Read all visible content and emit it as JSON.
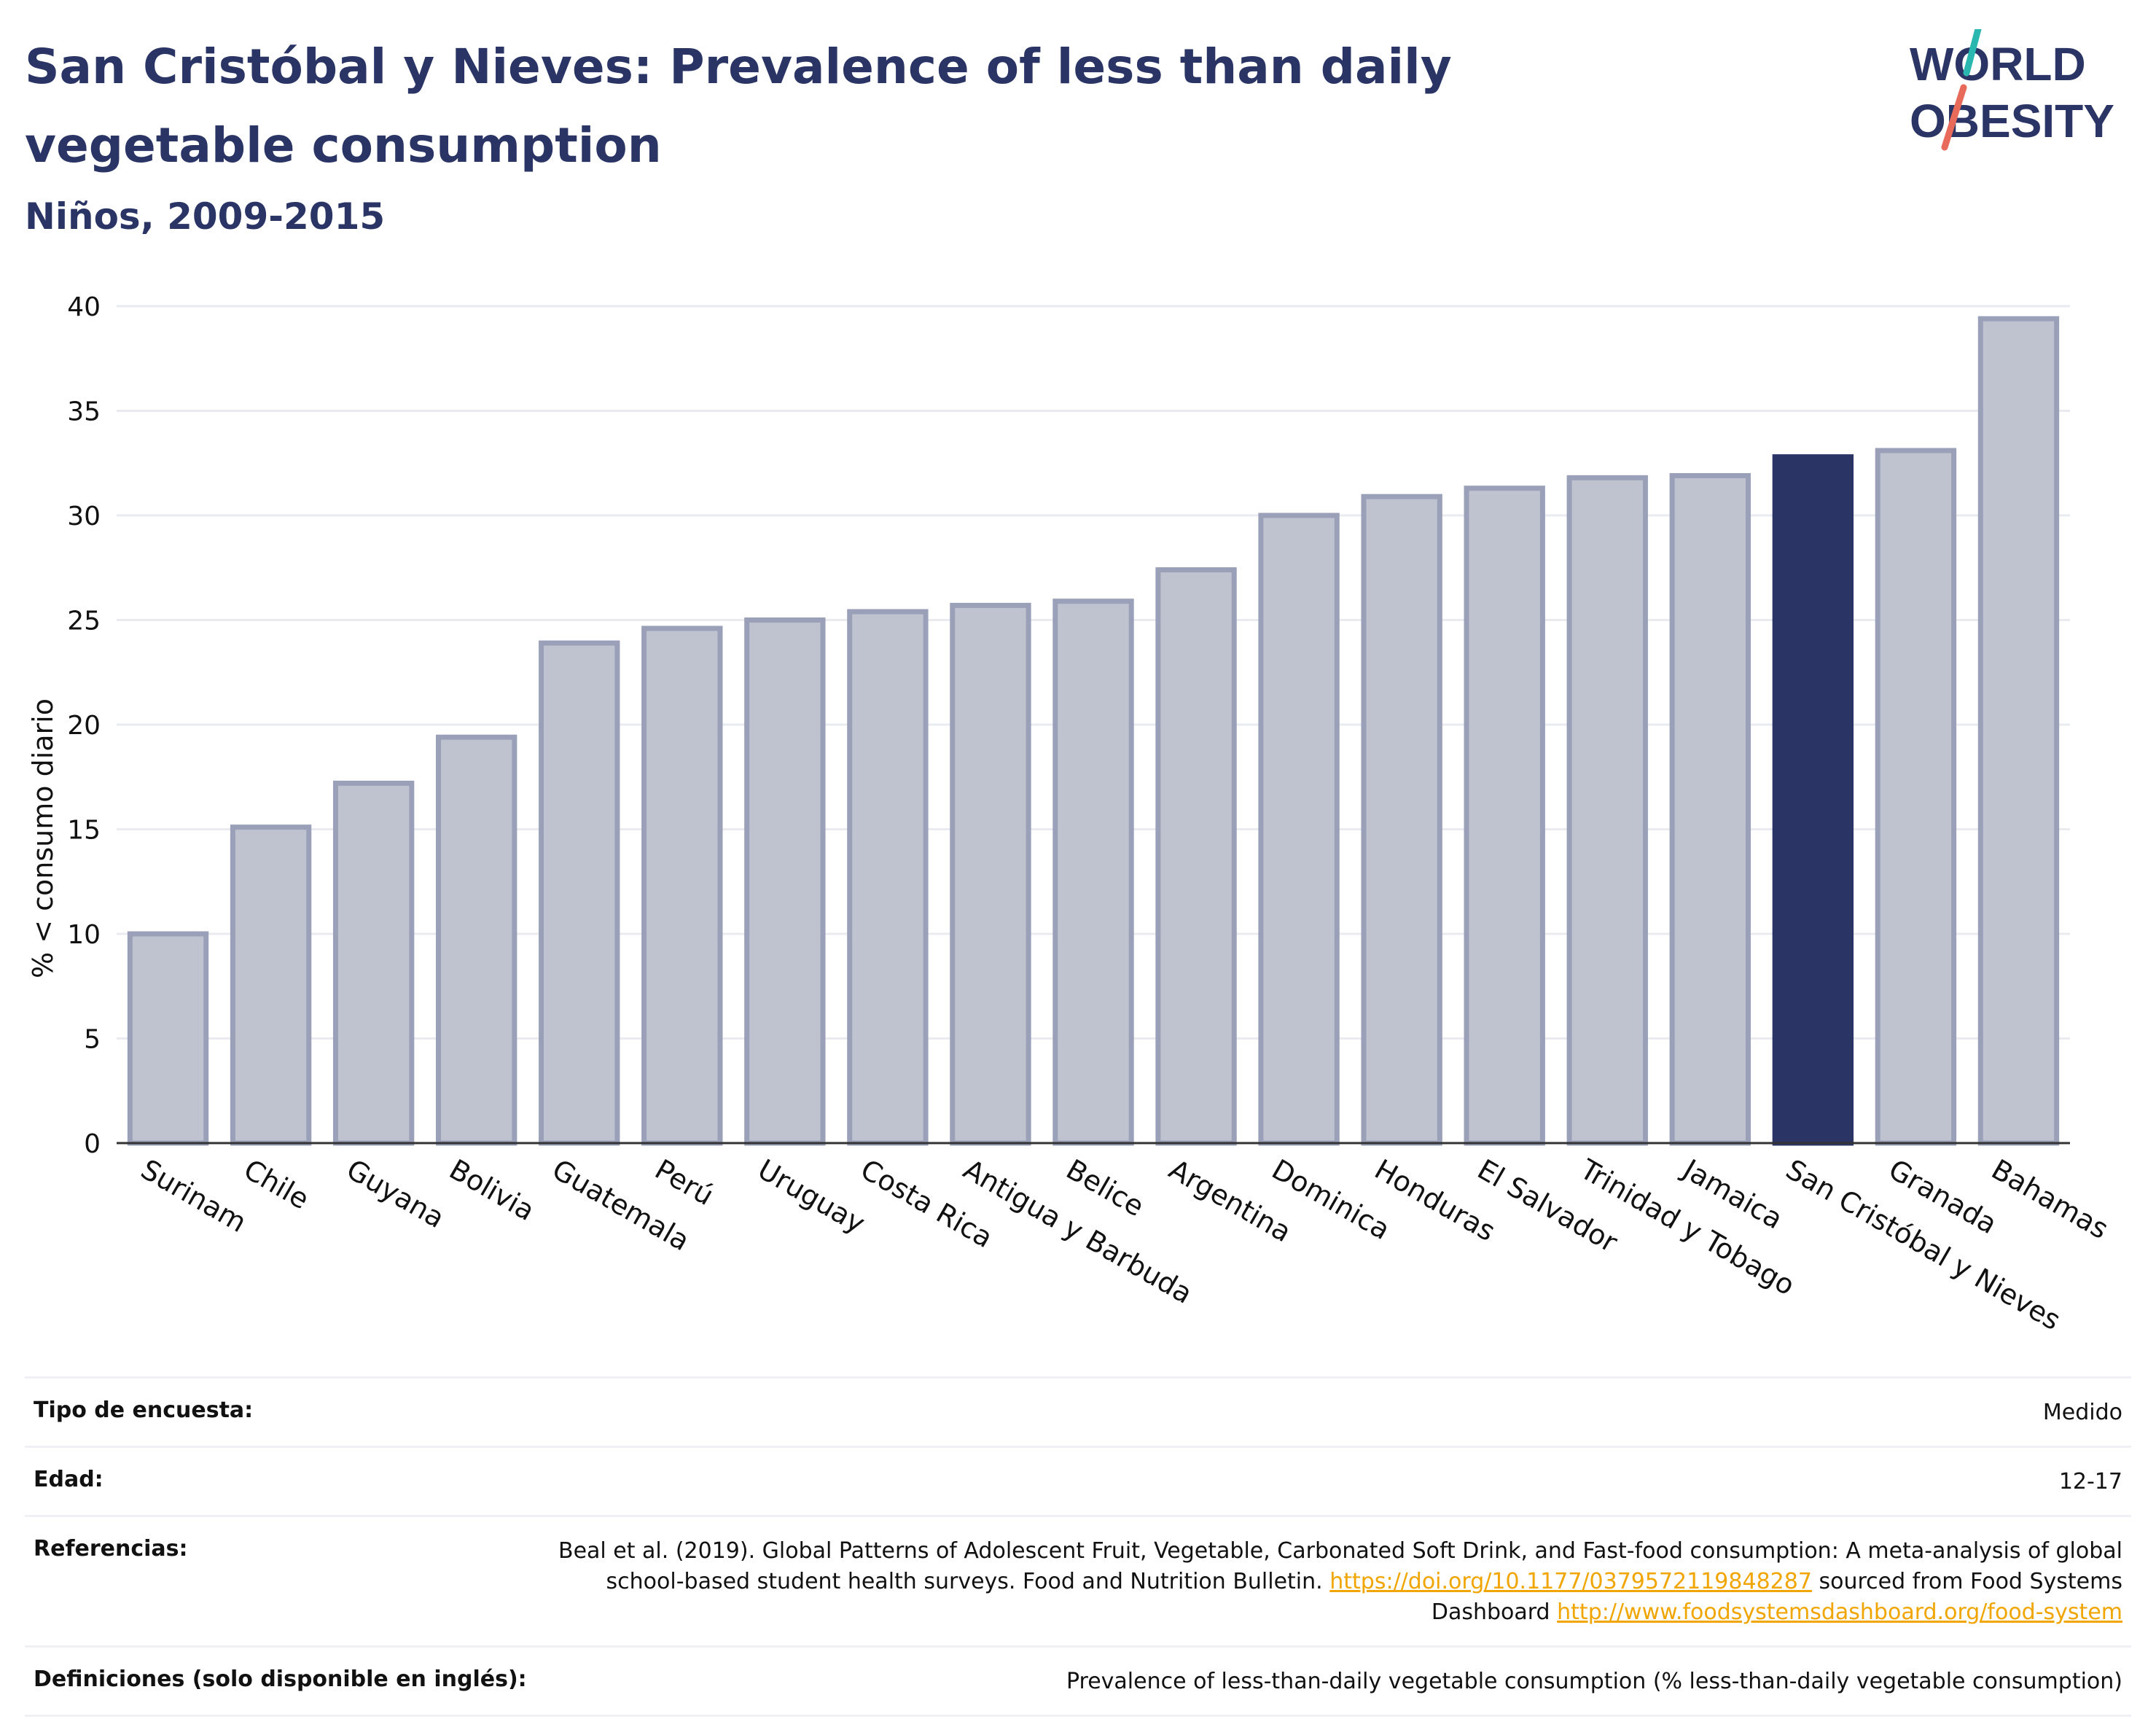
{
  "title": "San Cristóbal y Nieves: Prevalence of less than daily vegetable consumption",
  "subtitle": "Niños, 2009-2015",
  "logo": {
    "line1": "WORLD",
    "line2": "OBESITY"
  },
  "colors": {
    "highlight": "#2a3566",
    "bar": "#bfc3d0",
    "bar_border": "#9aa0b8",
    "link": "#f0a500"
  },
  "chart_data": {
    "type": "bar",
    "ylabel": "% < consumo diario",
    "xlabel": "",
    "ylim": [
      0,
      40
    ],
    "yticks": [
      0,
      5,
      10,
      15,
      20,
      25,
      30,
      35,
      40
    ],
    "grid": true,
    "highlight": "San Cristóbal y Nieves",
    "categories": [
      "Surinam",
      "Chile",
      "Guyana",
      "Bolivia",
      "Guatemala",
      "Perú",
      "Uruguay",
      "Costa Rica",
      "Antigua y Barbuda",
      "Belice",
      "Argentina",
      "Dominica",
      "Honduras",
      "El Salvador",
      "Trinidad y Tobago",
      "Jamaica",
      "San Cristóbal y Nieves",
      "Granada",
      "Bahamas"
    ],
    "values": [
      10.0,
      15.1,
      17.2,
      19.4,
      23.9,
      24.6,
      25.0,
      25.4,
      25.7,
      25.9,
      27.4,
      30.0,
      30.9,
      31.3,
      31.8,
      31.9,
      32.8,
      33.1,
      39.4
    ]
  },
  "info": {
    "survey_type": {
      "label": "Tipo de encuesta:",
      "value": "Medido"
    },
    "age": {
      "label": "Edad:",
      "value": "12-17"
    },
    "references": {
      "label": "Referencias:",
      "text1": "Beal et al. (2019). Global Patterns of Adolescent Fruit, Vegetable, Carbonated Soft Drink, and Fast-food consumption: A meta-analysis of global school-based student health surveys. Food and Nutrition Bulletin.",
      "link1": "https://doi.org/10.1177/0379572119848287",
      "text2": "sourced from Food Systems Dashboard",
      "link2": "http://www.foodsystemsdashboard.org/food-system"
    },
    "definitions": {
      "label": "Definiciones (solo disponible en inglés):",
      "value": "Prevalence of less-than-daily vegetable consumption (% less-than-daily vegetable consumption)"
    }
  }
}
